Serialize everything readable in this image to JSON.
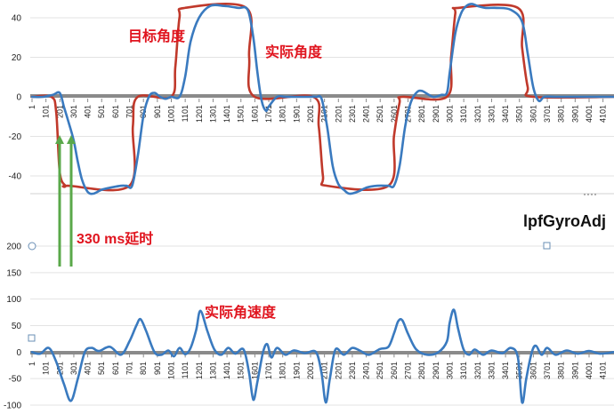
{
  "chart_data": [
    {
      "type": "line",
      "yticks": [
        40,
        20,
        0,
        -20,
        -40
      ],
      "x_tick_labels": [
        "1",
        "101",
        "201",
        "301",
        "401",
        "501",
        "601",
        "701",
        "801",
        "901",
        "1001",
        "1101",
        "1201",
        "1301",
        "1401",
        "1501",
        "1601",
        "1701",
        "1801",
        "1901",
        "2001",
        "2101",
        "2201",
        "2301",
        "2401",
        "2501",
        "2601",
        "2701",
        "2801",
        "2901",
        "3001",
        "3101",
        "3201",
        "3301",
        "3401",
        "3501",
        "3601",
        "3701",
        "3801",
        "3901",
        "4001",
        "4101"
      ],
      "series": [
        {
          "name": "目标角度",
          "color": "#c0392b",
          "x": [
            1,
            140,
            175,
            200,
            240,
            260,
            700,
            725,
            760,
            1000,
            1030,
            1060,
            1100,
            1540,
            1560,
            1600,
            2020,
            2060,
            2090,
            2120,
            2560,
            2600,
            2640,
            2660,
            2980,
            3010,
            3040,
            3060,
            3490,
            3520,
            3560,
            3600,
            4180
          ],
          "y": [
            0,
            0,
            -8,
            -38,
            -45,
            -45,
            -45,
            -15,
            0,
            0,
            15,
            40,
            45,
            45,
            20,
            0,
            0,
            -15,
            -40,
            -45,
            -45,
            -20,
            -3,
            0,
            0,
            20,
            42,
            45,
            45,
            25,
            5,
            0,
            0
          ]
        },
        {
          "name": "实际角度",
          "color": "#3a7abf",
          "x": [
            1,
            80,
            150,
            200,
            230,
            260,
            300,
            330,
            360,
            400,
            440,
            500,
            560,
            640,
            680,
            720,
            760,
            800,
            840,
            880,
            920,
            960,
            1000,
            1060,
            1100,
            1140,
            1200,
            1280,
            1380,
            1480,
            1550,
            1590,
            1620,
            1650,
            1680,
            1700,
            1760,
            1820,
            1900,
            1980,
            2040,
            2080,
            2120,
            2160,
            2200,
            2240,
            2280,
            2340,
            2400,
            2480,
            2560,
            2600,
            2640,
            2680,
            2720,
            2760,
            2800,
            2880,
            2940,
            2980,
            3000,
            3040,
            3080,
            3120,
            3160,
            3200,
            3260,
            3340,
            3440,
            3520,
            3560,
            3600,
            3640,
            3680,
            3760,
            3880,
            4000,
            4180
          ],
          "y": [
            0,
            0,
            1,
            2,
            -5,
            -12,
            -22,
            -33,
            -42,
            -48,
            -49,
            -47,
            -46,
            -45,
            -45,
            -45,
            -30,
            -10,
            0,
            2,
            0,
            -1,
            0,
            0,
            10,
            28,
            40,
            46,
            46,
            45,
            44,
            30,
            12,
            -2,
            -7,
            -5,
            0,
            0,
            0,
            0,
            0,
            -1,
            -15,
            -35,
            -44,
            -47,
            -49,
            -48,
            -46,
            -45,
            -45,
            -45,
            -35,
            -15,
            -3,
            2,
            3,
            0,
            1,
            2,
            12,
            32,
            42,
            46,
            47,
            46,
            45,
            45,
            44,
            38,
            22,
            5,
            -2,
            0,
            0,
            0,
            0,
            0
          ]
        }
      ],
      "annotations": [
        "目标角度",
        "实际角度",
        "330 ms延时"
      ]
    },
    {
      "type": "line",
      "title": "lpfGyroAdj",
      "yticks": [
        200,
        150,
        100,
        50,
        0,
        -50,
        -100
      ],
      "x_tick_labels": [
        "1",
        "101",
        "201",
        "301",
        "401",
        "501",
        "601",
        "701",
        "801",
        "901",
        "1001",
        "1101",
        "1201",
        "1301",
        "1401",
        "1501",
        "1601",
        "1701",
        "1801",
        "1901",
        "2001",
        "2101",
        "2201",
        "2301",
        "2401",
        "2501",
        "2601",
        "2701",
        "2801",
        "2901",
        "3001",
        "3101",
        "3201",
        "3301",
        "3401",
        "3501",
        "3601",
        "3701",
        "3801",
        "3901",
        "4001",
        "4101"
      ],
      "series": [
        {
          "name": "实际角速度",
          "color": "#3a7abf",
          "x": [
            1,
            60,
            120,
            170,
            230,
            280,
            330,
            380,
            430,
            480,
            560,
            640,
            700,
            750,
            780,
            820,
            880,
            930,
            980,
            1020,
            1060,
            1100,
            1140,
            1180,
            1210,
            1260,
            1310,
            1360,
            1410,
            1460,
            1520,
            1560,
            1590,
            1620,
            1660,
            1690,
            1720,
            1760,
            1820,
            1880,
            1960,
            2040,
            2080,
            2110,
            2140,
            2180,
            2240,
            2300,
            2360,
            2420,
            2500,
            2560,
            2600,
            2630,
            2660,
            2700,
            2760,
            2840,
            2920,
            2980,
            3000,
            3030,
            3060,
            3100,
            3140,
            3180,
            3240,
            3300,
            3380,
            3440,
            3490,
            3520,
            3550,
            3590,
            3620,
            3660,
            3700,
            3760,
            3840,
            3920,
            4000,
            4080,
            4180
          ],
          "y": [
            0,
            -3,
            8,
            -15,
            -60,
            -92,
            -50,
            0,
            8,
            2,
            10,
            -5,
            20,
            50,
            62,
            40,
            0,
            -5,
            3,
            -8,
            8,
            -4,
            8,
            42,
            78,
            40,
            5,
            -5,
            8,
            -3,
            5,
            -40,
            -90,
            -55,
            0,
            15,
            -10,
            8,
            -5,
            3,
            -2,
            0,
            -40,
            -95,
            -50,
            5,
            -5,
            8,
            2,
            -5,
            6,
            10,
            35,
            58,
            60,
            35,
            5,
            -5,
            0,
            20,
            55,
            80,
            45,
            5,
            -5,
            5,
            -5,
            3,
            -2,
            8,
            -10,
            -95,
            -50,
            0,
            12,
            -5,
            8,
            -5,
            3,
            -3,
            2,
            -3,
            0
          ]
        }
      ],
      "annotations": [
        "实际角速度"
      ]
    }
  ]
}
